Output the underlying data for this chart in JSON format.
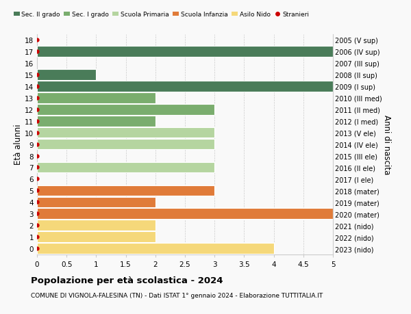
{
  "ages": [
    18,
    17,
    16,
    15,
    14,
    13,
    12,
    11,
    10,
    9,
    8,
    7,
    6,
    5,
    4,
    3,
    2,
    1,
    0
  ],
  "right_labels": [
    "2005 (V sup)",
    "2006 (IV sup)",
    "2007 (III sup)",
    "2008 (II sup)",
    "2009 (I sup)",
    "2010 (III med)",
    "2011 (II med)",
    "2012 (I med)",
    "2013 (V ele)",
    "2014 (IV ele)",
    "2015 (III ele)",
    "2016 (II ele)",
    "2017 (I ele)",
    "2018 (mater)",
    "2019 (mater)",
    "2020 (mater)",
    "2021 (nido)",
    "2022 (nido)",
    "2023 (nido)"
  ],
  "values": [
    0,
    5,
    0,
    1,
    5,
    2,
    3,
    2,
    3,
    3,
    0,
    3,
    0,
    3,
    2,
    5,
    2,
    2,
    4
  ],
  "colors": [
    "#4a7c59",
    "#4a7c59",
    "#4a7c59",
    "#4a7c59",
    "#4a7c59",
    "#7aad6e",
    "#7aad6e",
    "#7aad6e",
    "#b5d5a0",
    "#b5d5a0",
    "#b5d5a0",
    "#b5d5a0",
    "#b5d5a0",
    "#e07b39",
    "#e07b39",
    "#e07b39",
    "#f5d87a",
    "#f5d87a",
    "#f5d87a"
  ],
  "stranieri": [
    1,
    1,
    0,
    1,
    1,
    1,
    1,
    1,
    1,
    1,
    1,
    1,
    1,
    1,
    1,
    1,
    1,
    1,
    1
  ],
  "legend_labels": [
    "Sec. II grado",
    "Sec. I grado",
    "Scuola Primaria",
    "Scuola Infanzia",
    "Asilo Nido",
    "Stranieri"
  ],
  "legend_colors": [
    "#4a7c59",
    "#7aad6e",
    "#b5d5a0",
    "#e07b39",
    "#f5d87a",
    "#cc0000"
  ],
  "ylabel_left": "Età alunni",
  "ylabel_right": "Anni di nascita",
  "xlim": [
    0,
    5.0
  ],
  "xticks": [
    0,
    0.5,
    1.0,
    1.5,
    2.0,
    2.5,
    3.0,
    3.5,
    4.0,
    4.5,
    5.0
  ],
  "title": "Popolazione per età scolastica - 2024",
  "subtitle": "COMUNE DI VIGNOLA-FALESINA (TN) - Dati ISTAT 1° gennaio 2024 - Elaborazione TUTTITALIA.IT",
  "bar_height": 0.92,
  "background_color": "#f9f9f9",
  "grid_color": "#cccccc"
}
